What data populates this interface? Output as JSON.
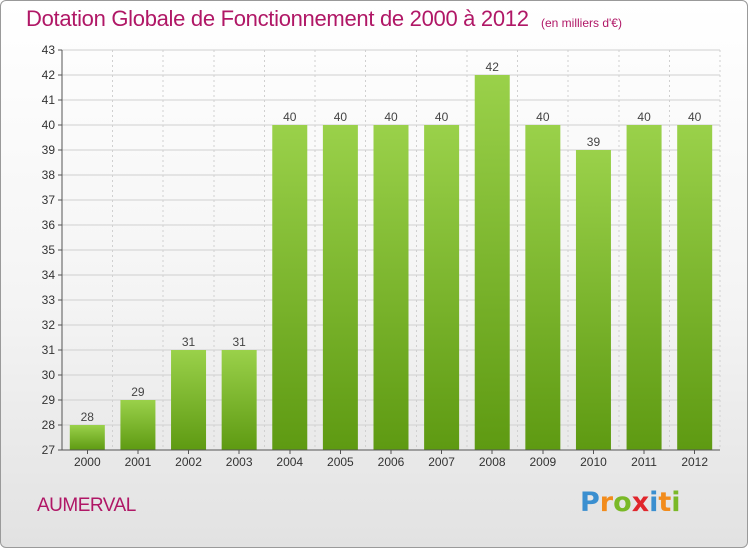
{
  "header": {
    "title": "Dotation Globale de Fonctionnement de 2000 à 2012",
    "unit": "(en milliers d'€)"
  },
  "footer": {
    "commune": "AUMERVAL",
    "logo_letters": [
      "P",
      "r",
      "o",
      "x",
      "i",
      "t",
      "i"
    ],
    "logo_colors": [
      "#3a8fd0",
      "#f28c1c",
      "#7ab927",
      "#e0262c",
      "#3a8fd0",
      "#f28c1c",
      "#7ab927"
    ]
  },
  "colors": {
    "title": "#b01766",
    "bar_light": "#9ad14a",
    "bar_dark": "#5e9a12",
    "grid": "#d0d0d0",
    "axis": "#555555"
  },
  "chart_data": {
    "type": "bar",
    "categories": [
      "2000",
      "2001",
      "2002",
      "2003",
      "2004",
      "2005",
      "2006",
      "2007",
      "2008",
      "2009",
      "2010",
      "2011",
      "2012"
    ],
    "values": [
      28,
      29,
      31,
      31,
      40,
      40,
      40,
      40,
      42,
      40,
      39,
      40,
      40
    ],
    "ylim": [
      27,
      43
    ],
    "yticks": [
      27,
      28,
      29,
      30,
      31,
      32,
      33,
      34,
      35,
      36,
      37,
      38,
      39,
      40,
      41,
      42,
      43
    ],
    "grid": true,
    "data_labels": true,
    "xlabel": "",
    "ylabel": ""
  }
}
